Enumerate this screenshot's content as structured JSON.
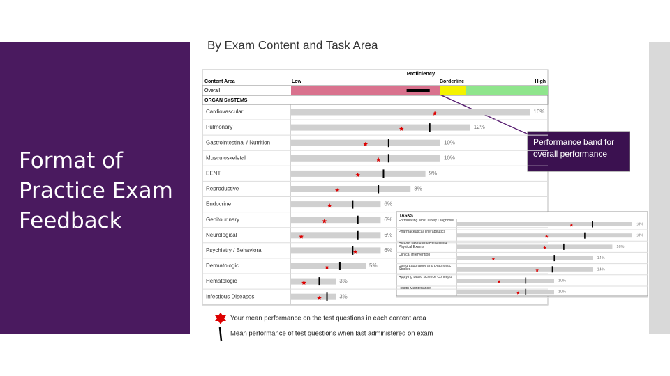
{
  "title": "Format of Practice Exam Feedback",
  "subtitle": "By Exam Content and Task Area",
  "report": {
    "header": {
      "proficiency": "Proficiency",
      "content_area": "Content Area",
      "low": "Low",
      "borderline": "Borderline",
      "high": "High"
    },
    "overall": {
      "label": "Overall",
      "borderline_start": 58,
      "high_start": 68,
      "band": [
        45,
        54
      ]
    },
    "section": "ORGAN SYSTEMS",
    "rows": [
      {
        "label": "Cardiovascular",
        "weight": {
          "value": 16,
          "label": "16%"
        },
        "score": 56,
        "mean": null
      },
      {
        "label": "Pulmonary",
        "weight": {
          "value": 12,
          "label": "12%"
        },
        "score": 43,
        "mean": 54
      },
      {
        "label": "Gastrointestinal / Nutrition",
        "weight": {
          "value": 10,
          "label": "10%"
        },
        "score": 29,
        "mean": 38
      },
      {
        "label": "Musculoskeletal",
        "weight": {
          "value": 10,
          "label": "10%"
        },
        "score": 34,
        "mean": 38
      },
      {
        "label": "EENT",
        "weight": {
          "value": 9,
          "label": "9%"
        },
        "score": 26,
        "mean": 36
      },
      {
        "label": "Reproductive",
        "weight": {
          "value": 8,
          "label": "8%"
        },
        "score": 18,
        "mean": 34
      },
      {
        "label": "Endocrine",
        "weight": {
          "value": 6,
          "label": "6%"
        },
        "score": 15,
        "mean": 24
      },
      {
        "label": "Genitourinary",
        "weight": {
          "value": 6,
          "label": "6%"
        },
        "score": 13,
        "mean": 26
      },
      {
        "label": "Neurological",
        "weight": {
          "value": 6,
          "label": "6%"
        },
        "score": 4,
        "mean": 26
      },
      {
        "label": "Psychiatry / Behavioral",
        "weight": {
          "value": 6,
          "label": "6%"
        },
        "score": 25,
        "mean": 24
      },
      {
        "label": "Dermatologic",
        "weight": {
          "value": 5,
          "label": "5%"
        },
        "score": 14,
        "mean": 19
      },
      {
        "label": "Hematologic",
        "weight": {
          "value": 3,
          "label": "3%"
        },
        "score": 5,
        "mean": 11
      },
      {
        "label": "Infectious Diseases",
        "weight": {
          "value": 3,
          "label": "3%"
        },
        "score": 11,
        "mean": 14
      }
    ]
  },
  "tasks": {
    "header": "TASKS",
    "rows": [
      {
        "label": "Formulating Most Likely Diagnosis",
        "weight": {
          "value": 18,
          "label": "18%"
        },
        "score": 60,
        "mean": 71
      },
      {
        "label": "Pharmaceutical Therapeutics",
        "weight": {
          "value": 18,
          "label": "18%"
        },
        "score": 47,
        "mean": 67
      },
      {
        "label": "History Taking and Performing Physical Exams",
        "weight": {
          "value": 16,
          "label": "16%"
        },
        "score": 46,
        "mean": 56
      },
      {
        "label": "Clinical Intervention",
        "weight": {
          "value": 14,
          "label": "14%"
        },
        "score": 19,
        "mean": 51
      },
      {
        "label": "Using Laboratory and Diagnostic Studies",
        "weight": {
          "value": 14,
          "label": "14%"
        },
        "score": 42,
        "mean": 50
      },
      {
        "label": "Applying Basic Science Concepts",
        "weight": {
          "value": 10,
          "label": "10%"
        },
        "score": 22,
        "mean": 36
      },
      {
        "label": "Health Maintenance",
        "weight": {
          "value": 10,
          "label": "10%"
        },
        "score": 32,
        "mean": 36
      }
    ]
  },
  "callout": "Performance band for overall performance",
  "legend": {
    "score": "Your mean performance on the test questions in each content area",
    "mean": "Mean performance of test questions when last administered on exam"
  }
}
